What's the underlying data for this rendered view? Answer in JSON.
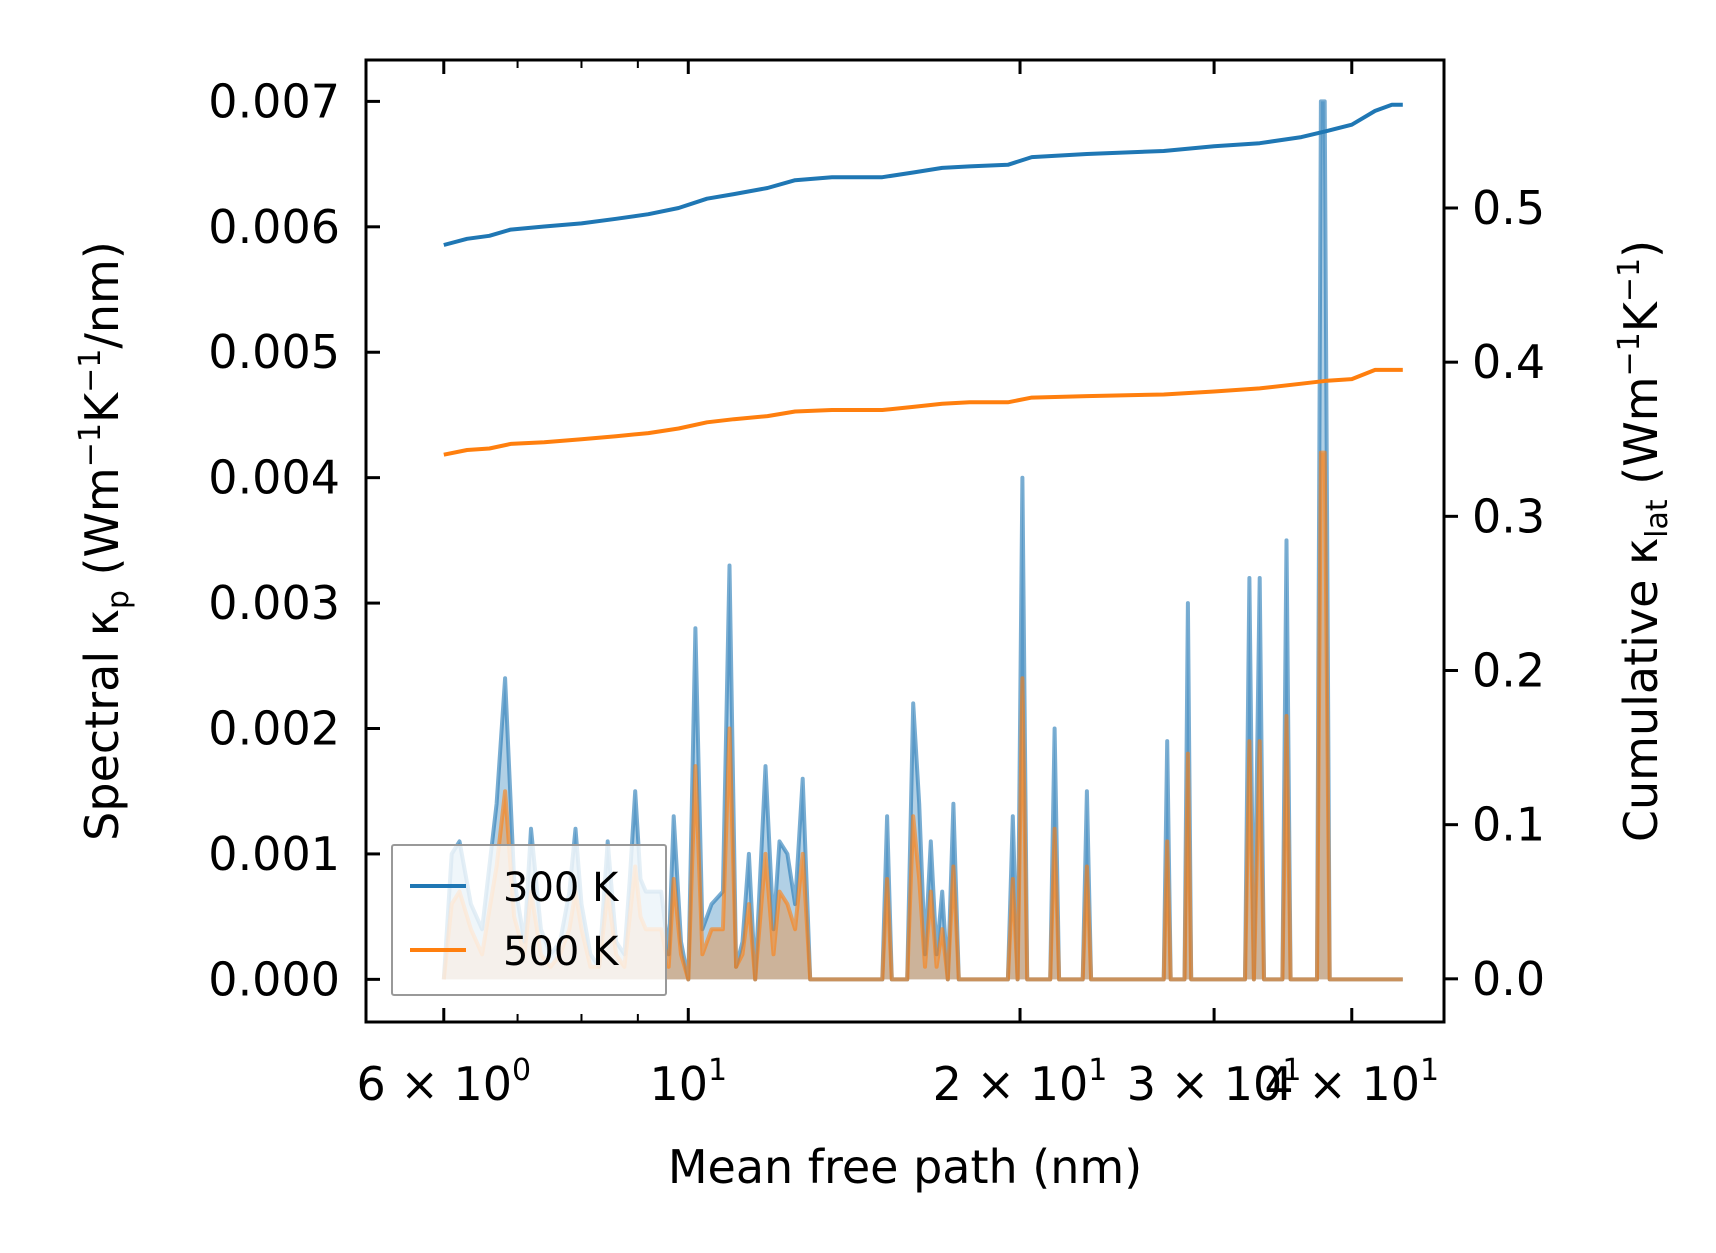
{
  "chart_data": {
    "type": "line",
    "title": "",
    "xlabel": "Mean free path (nm)",
    "ylabel_left": {
      "main": "Spectral κ",
      "sub": "p",
      "unit": " (Wm",
      "exp1": "−1",
      "mid": "K",
      "exp2": "−1",
      "tail": "/nm)"
    },
    "ylabel_right": {
      "main": "Cumulative κ",
      "sub": "lat",
      "unit": " (Wm",
      "exp1": "−1",
      "mid": "K",
      "exp2": "−1",
      "tail": ")"
    },
    "xscale": "log",
    "xlim": [
      5.1,
      48.5
    ],
    "ylim_left": [
      -0.00034,
      0.00733
    ],
    "ylim_right": [
      -0.028,
      0.596
    ],
    "x_ticks": [
      {
        "value": 6,
        "mant": "6",
        "exp": "0"
      },
      {
        "value": 10,
        "mant": "",
        "exp": "1"
      },
      {
        "value": 20,
        "mant": "2",
        "exp": "1"
      },
      {
        "value": 30,
        "mant": "3",
        "exp": "1"
      },
      {
        "value": 40,
        "mant": "4",
        "exp": "1"
      }
    ],
    "x_minor_ticks": [
      7,
      8,
      9
    ],
    "y_left_ticks": [
      "0.000",
      "0.001",
      "0.002",
      "0.003",
      "0.004",
      "0.005",
      "0.006",
      "0.007"
    ],
    "y_left_tick_values": [
      0,
      0.001,
      0.002,
      0.003,
      0.004,
      0.005,
      0.006,
      0.007
    ],
    "y_right_ticks": [
      "0.0",
      "0.1",
      "0.2",
      "0.3",
      "0.4",
      "0.5"
    ],
    "y_right_tick_values": [
      0,
      0.1,
      0.2,
      0.3,
      0.4,
      0.5
    ],
    "legend": {
      "position": "lower-left",
      "entries": [
        "300 K",
        "500 K"
      ]
    },
    "colors": {
      "300 K": "#1f77b4",
      "500 K": "#ff7f0e"
    },
    "series": [
      {
        "name": "300 K",
        "axis": "right",
        "kind": "cumulative",
        "points": [
          [
            6.0,
            0.476
          ],
          [
            6.3,
            0.48
          ],
          [
            6.6,
            0.482
          ],
          [
            6.9,
            0.486
          ],
          [
            7.4,
            0.488
          ],
          [
            8.0,
            0.49
          ],
          [
            8.6,
            0.493
          ],
          [
            9.2,
            0.496
          ],
          [
            9.8,
            0.5
          ],
          [
            10.4,
            0.506
          ],
          [
            11.0,
            0.509
          ],
          [
            11.8,
            0.513
          ],
          [
            12.5,
            0.518
          ],
          [
            13.5,
            0.52
          ],
          [
            15.0,
            0.52
          ],
          [
            16.0,
            0.523
          ],
          [
            17.0,
            0.526
          ],
          [
            18.0,
            0.527
          ],
          [
            19.5,
            0.528
          ],
          [
            20.5,
            0.533
          ],
          [
            23.0,
            0.535
          ],
          [
            27.0,
            0.537
          ],
          [
            30.0,
            0.54
          ],
          [
            33.0,
            0.542
          ],
          [
            36.0,
            0.546
          ],
          [
            38.0,
            0.55
          ],
          [
            40.0,
            0.554
          ],
          [
            42.0,
            0.563
          ],
          [
            43.5,
            0.567
          ],
          [
            44.5,
            0.567
          ]
        ]
      },
      {
        "name": "500 K",
        "axis": "right",
        "kind": "cumulative",
        "points": [
          [
            6.0,
            0.34
          ],
          [
            6.3,
            0.343
          ],
          [
            6.6,
            0.344
          ],
          [
            6.9,
            0.347
          ],
          [
            7.4,
            0.348
          ],
          [
            8.0,
            0.35
          ],
          [
            8.6,
            0.352
          ],
          [
            9.2,
            0.354
          ],
          [
            9.8,
            0.357
          ],
          [
            10.4,
            0.361
          ],
          [
            11.0,
            0.363
          ],
          [
            11.8,
            0.365
          ],
          [
            12.5,
            0.368
          ],
          [
            13.5,
            0.369
          ],
          [
            15.0,
            0.369
          ],
          [
            16.0,
            0.371
          ],
          [
            17.0,
            0.373
          ],
          [
            18.0,
            0.374
          ],
          [
            19.5,
            0.374
          ],
          [
            20.5,
            0.377
          ],
          [
            23.0,
            0.378
          ],
          [
            27.0,
            0.379
          ],
          [
            30.0,
            0.381
          ],
          [
            33.0,
            0.383
          ],
          [
            36.0,
            0.386
          ],
          [
            38.0,
            0.388
          ],
          [
            40.0,
            0.389
          ],
          [
            42.0,
            0.395
          ],
          [
            43.5,
            0.395
          ],
          [
            44.5,
            0.395
          ]
        ]
      },
      {
        "name": "300 K",
        "axis": "left",
        "kind": "spectral",
        "points": [
          [
            6.0,
            0.0
          ],
          [
            6.1,
            0.001
          ],
          [
            6.2,
            0.0011
          ],
          [
            6.35,
            0.0006
          ],
          [
            6.5,
            0.0004
          ],
          [
            6.7,
            0.0014
          ],
          [
            6.82,
            0.0024
          ],
          [
            6.95,
            0.0008
          ],
          [
            7.1,
            0.0003
          ],
          [
            7.2,
            0.0012
          ],
          [
            7.35,
            0.0004
          ],
          [
            7.5,
            0.0002
          ],
          [
            7.65,
            0.0003
          ],
          [
            7.8,
            0.0007
          ],
          [
            7.9,
            0.0012
          ],
          [
            8.0,
            0.0006
          ],
          [
            8.15,
            0.0002
          ],
          [
            8.3,
            0.0001
          ],
          [
            8.45,
            0.0011
          ],
          [
            8.6,
            0.0003
          ],
          [
            8.75,
            0.0002
          ],
          [
            8.85,
            0.0008
          ],
          [
            8.95,
            0.0015
          ],
          [
            9.05,
            0.0008
          ],
          [
            9.15,
            0.0007
          ],
          [
            9.3,
            0.0007
          ],
          [
            9.45,
            0.0007
          ],
          [
            9.6,
            0.0002
          ],
          [
            9.7,
            0.0013
          ],
          [
            9.85,
            0.0003
          ],
          [
            10.0,
            0.0
          ],
          [
            10.15,
            0.0028
          ],
          [
            10.3,
            0.0004
          ],
          [
            10.5,
            0.0006
          ],
          [
            10.75,
            0.0007
          ],
          [
            10.9,
            0.0033
          ],
          [
            11.05,
            0.0001
          ],
          [
            11.2,
            0.0003
          ],
          [
            11.35,
            0.001
          ],
          [
            11.5,
            0.0
          ],
          [
            11.75,
            0.0017
          ],
          [
            11.95,
            0.0004
          ],
          [
            12.1,
            0.0011
          ],
          [
            12.3,
            0.001
          ],
          [
            12.5,
            0.0006
          ],
          [
            12.7,
            0.0016
          ],
          [
            12.9,
            0.0
          ],
          [
            15.0,
            0.0
          ],
          [
            15.15,
            0.0013
          ],
          [
            15.3,
            0.0
          ],
          [
            15.8,
            0.0
          ],
          [
            16.0,
            0.0022
          ],
          [
            16.2,
            0.0014
          ],
          [
            16.4,
            0.0002
          ],
          [
            16.6,
            0.0011
          ],
          [
            16.8,
            0.0002
          ],
          [
            17.0,
            0.0007
          ],
          [
            17.2,
            0.0
          ],
          [
            17.4,
            0.0014
          ],
          [
            17.6,
            0.0
          ],
          [
            19.5,
            0.0
          ],
          [
            19.7,
            0.0013
          ],
          [
            19.9,
            0.0
          ],
          [
            20.1,
            0.004
          ],
          [
            20.3,
            0.0
          ],
          [
            21.3,
            0.0
          ],
          [
            21.5,
            0.002
          ],
          [
            21.7,
            0.0
          ],
          [
            22.8,
            0.0
          ],
          [
            23.0,
            0.0015
          ],
          [
            23.2,
            0.0
          ],
          [
            27.0,
            0.0
          ],
          [
            27.2,
            0.0019
          ],
          [
            27.4,
            0.0
          ],
          [
            28.2,
            0.0
          ],
          [
            28.4,
            0.003
          ],
          [
            28.6,
            0.0
          ],
          [
            32.0,
            0.0
          ],
          [
            32.3,
            0.0032
          ],
          [
            32.6,
            0.0
          ],
          [
            33.0,
            0.0032
          ],
          [
            33.3,
            0.0
          ],
          [
            34.6,
            0.0
          ],
          [
            34.9,
            0.0035
          ],
          [
            35.2,
            0.0
          ],
          [
            37.2,
            0.0
          ],
          [
            37.5,
            0.007
          ],
          [
            37.8,
            0.007
          ],
          [
            38.2,
            0.0
          ],
          [
            44.5,
            0.0
          ]
        ]
      },
      {
        "name": "500 K",
        "axis": "left",
        "kind": "spectral",
        "points": [
          [
            6.0,
            0.0
          ],
          [
            6.1,
            0.0006
          ],
          [
            6.2,
            0.0007
          ],
          [
            6.35,
            0.0004
          ],
          [
            6.5,
            0.0002
          ],
          [
            6.7,
            0.0009
          ],
          [
            6.82,
            0.0015
          ],
          [
            6.95,
            0.0005
          ],
          [
            7.1,
            0.0002
          ],
          [
            7.2,
            0.0007
          ],
          [
            7.35,
            0.0002
          ],
          [
            7.5,
            0.0001
          ],
          [
            7.65,
            0.0002
          ],
          [
            7.8,
            0.0004
          ],
          [
            7.9,
            0.0007
          ],
          [
            8.0,
            0.0004
          ],
          [
            8.15,
            0.0001
          ],
          [
            8.3,
            0.0001
          ],
          [
            8.45,
            0.0007
          ],
          [
            8.6,
            0.0002
          ],
          [
            8.75,
            0.0001
          ],
          [
            8.85,
            0.0005
          ],
          [
            8.95,
            0.0009
          ],
          [
            9.05,
            0.0005
          ],
          [
            9.15,
            0.0004
          ],
          [
            9.3,
            0.0004
          ],
          [
            9.45,
            0.0004
          ],
          [
            9.6,
            0.0001
          ],
          [
            9.7,
            0.0008
          ],
          [
            9.85,
            0.0002
          ],
          [
            10.0,
            0.0
          ],
          [
            10.15,
            0.0017
          ],
          [
            10.3,
            0.0002
          ],
          [
            10.5,
            0.0004
          ],
          [
            10.75,
            0.0004
          ],
          [
            10.9,
            0.002
          ],
          [
            11.05,
            0.0001
          ],
          [
            11.2,
            0.0002
          ],
          [
            11.35,
            0.0006
          ],
          [
            11.5,
            0.0
          ],
          [
            11.75,
            0.001
          ],
          [
            11.95,
            0.0002
          ],
          [
            12.1,
            0.0007
          ],
          [
            12.3,
            0.0006
          ],
          [
            12.5,
            0.0004
          ],
          [
            12.7,
            0.001
          ],
          [
            12.9,
            0.0
          ],
          [
            15.0,
            0.0
          ],
          [
            15.15,
            0.0008
          ],
          [
            15.3,
            0.0
          ],
          [
            15.8,
            0.0
          ],
          [
            16.0,
            0.0013
          ],
          [
            16.2,
            0.0008
          ],
          [
            16.4,
            0.0001
          ],
          [
            16.6,
            0.0007
          ],
          [
            16.8,
            0.0001
          ],
          [
            17.0,
            0.0004
          ],
          [
            17.2,
            0.0
          ],
          [
            17.4,
            0.0009
          ],
          [
            17.6,
            0.0
          ],
          [
            19.5,
            0.0
          ],
          [
            19.7,
            0.0008
          ],
          [
            19.9,
            0.0
          ],
          [
            20.1,
            0.0024
          ],
          [
            20.3,
            0.0
          ],
          [
            21.3,
            0.0
          ],
          [
            21.5,
            0.0012
          ],
          [
            21.7,
            0.0
          ],
          [
            22.8,
            0.0
          ],
          [
            23.0,
            0.0009
          ],
          [
            23.2,
            0.0
          ],
          [
            27.0,
            0.0
          ],
          [
            27.2,
            0.0011
          ],
          [
            27.4,
            0.0
          ],
          [
            28.2,
            0.0
          ],
          [
            28.4,
            0.0018
          ],
          [
            28.6,
            0.0
          ],
          [
            32.0,
            0.0
          ],
          [
            32.3,
            0.0019
          ],
          [
            32.6,
            0.0
          ],
          [
            33.0,
            0.0019
          ],
          [
            33.3,
            0.0
          ],
          [
            34.6,
            0.0
          ],
          [
            34.9,
            0.0021
          ],
          [
            35.2,
            0.0
          ],
          [
            37.2,
            0.0
          ],
          [
            37.5,
            0.0042
          ],
          [
            37.8,
            0.0042
          ],
          [
            38.2,
            0.0
          ],
          [
            44.5,
            0.0
          ]
        ]
      }
    ]
  }
}
